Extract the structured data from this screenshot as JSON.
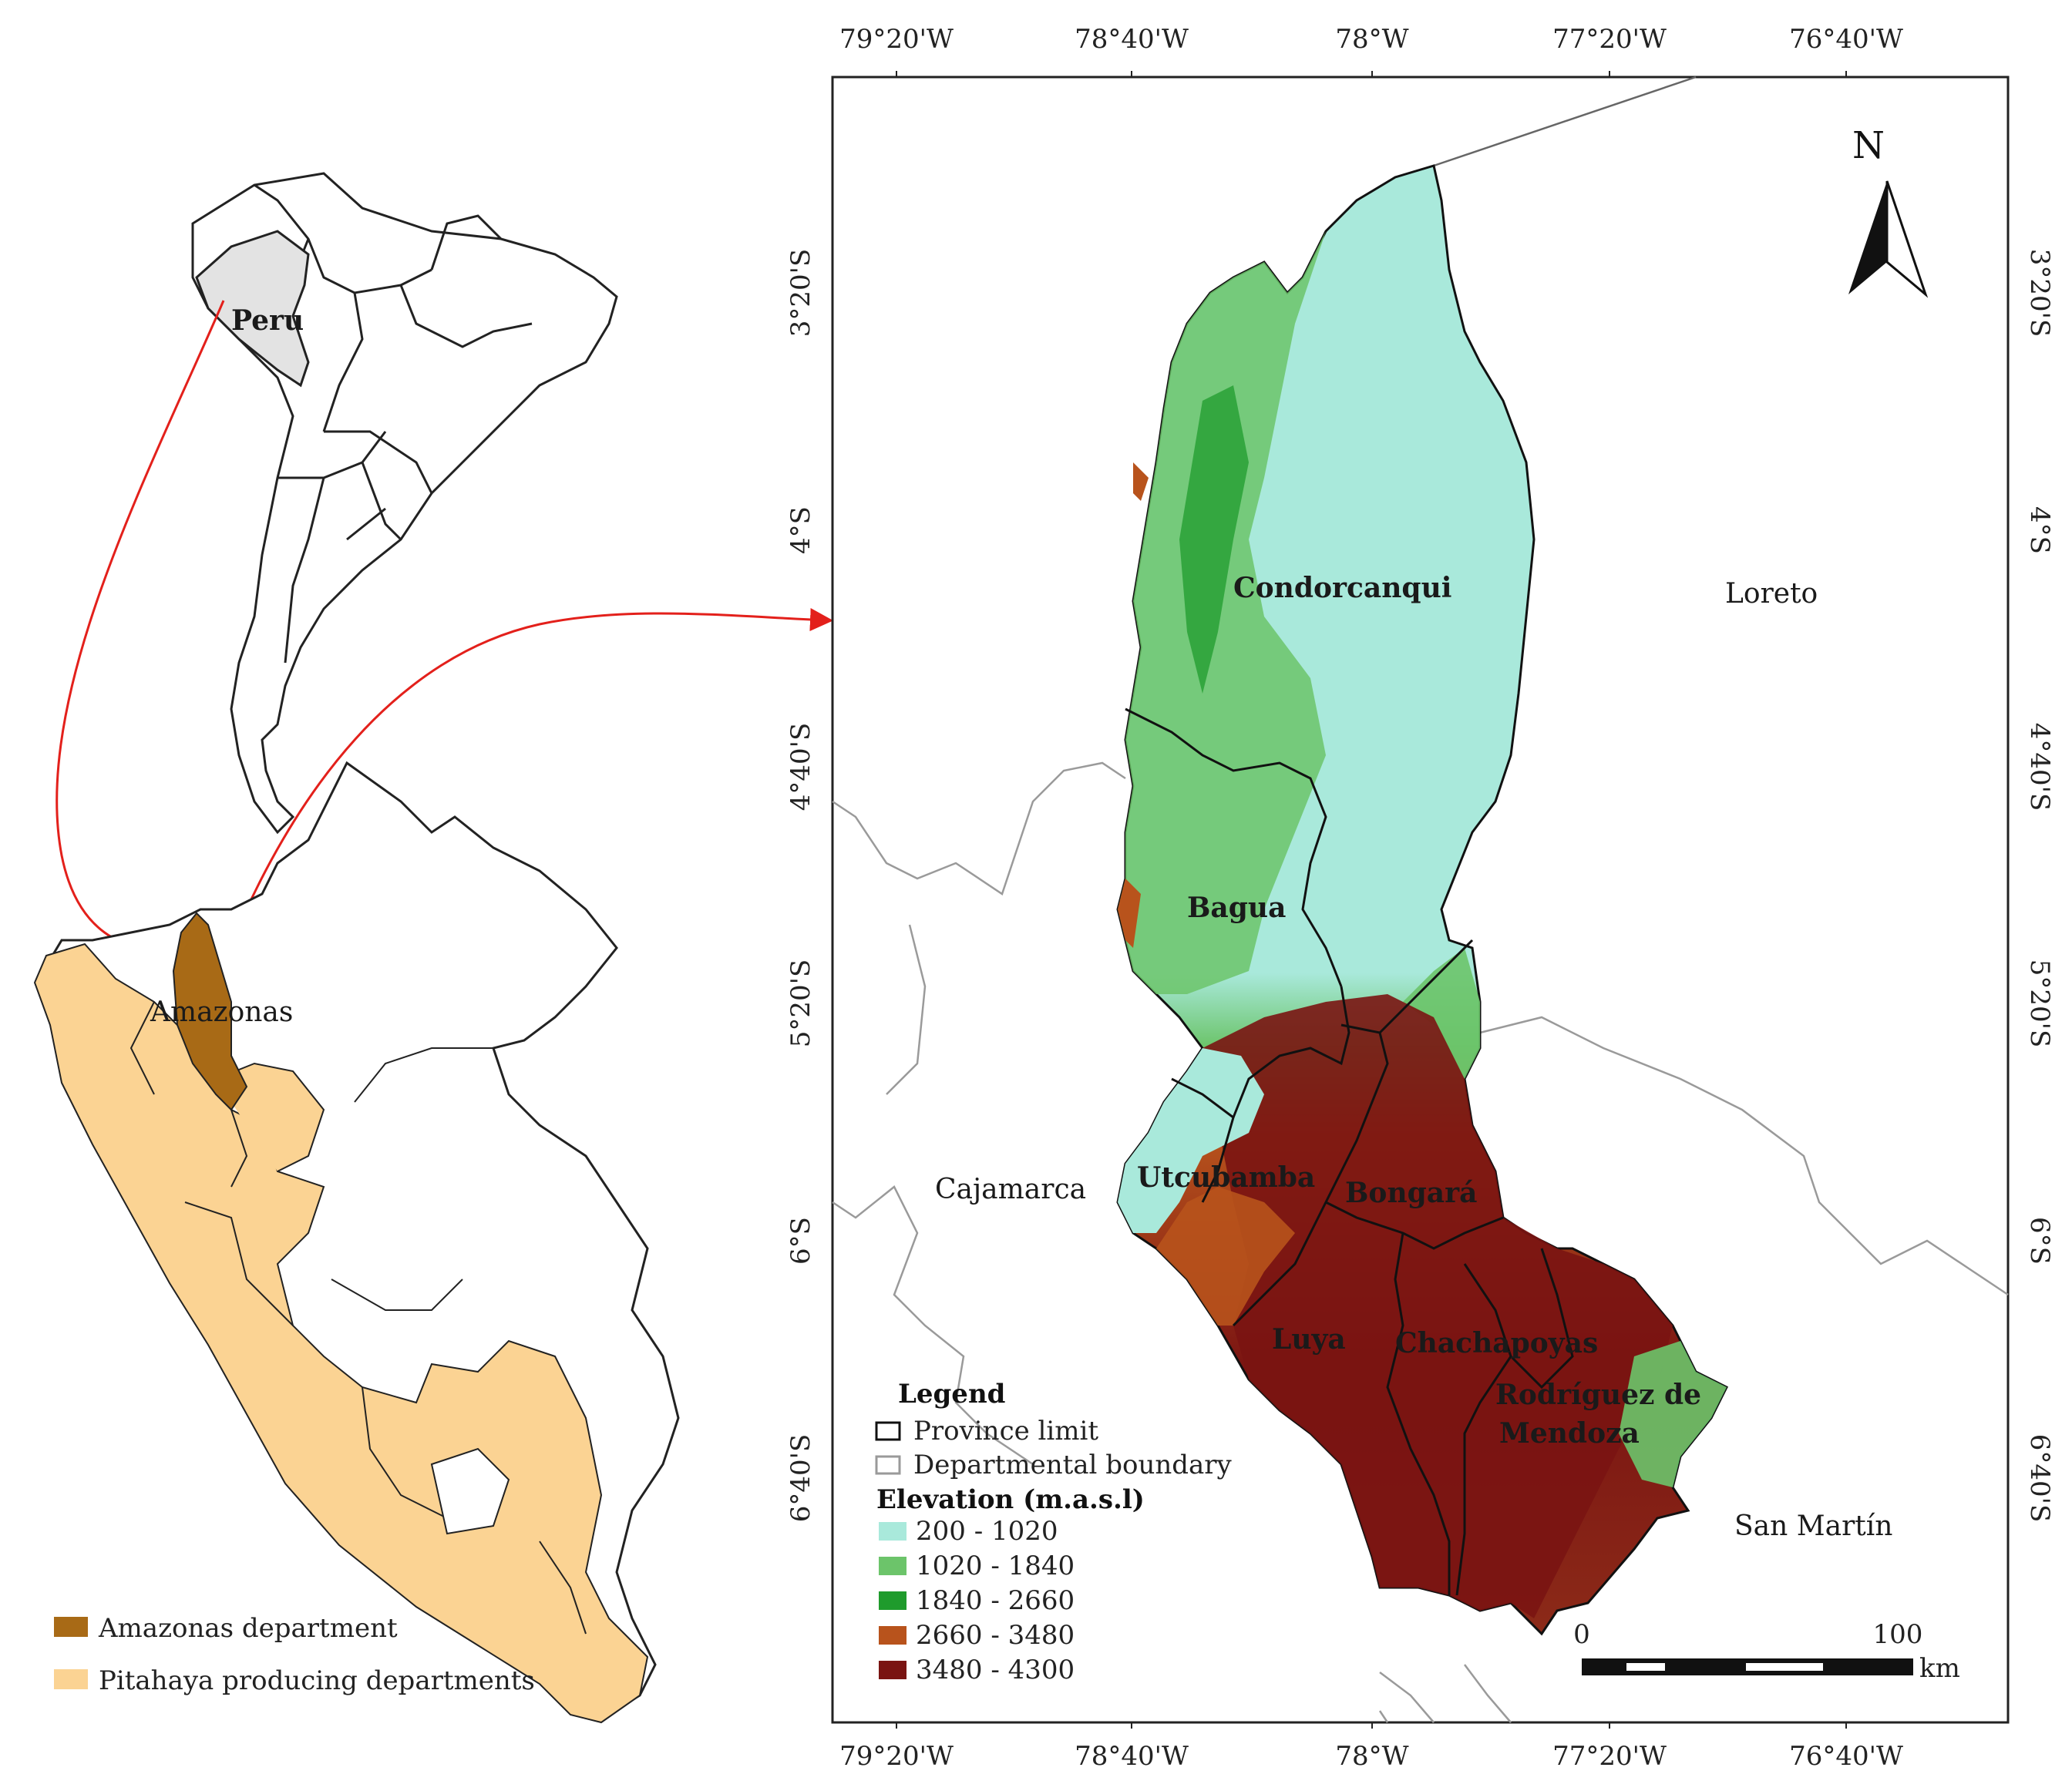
{
  "overview": {
    "peru_label": "Peru",
    "amazonas_label": "Amazonas",
    "legend": [
      {
        "label": "Amazonas department",
        "color": "#a86a16"
      },
      {
        "label": "Pitahaya producing departments",
        "color": "#fbd393"
      }
    ]
  },
  "main_map": {
    "x_ticks": [
      "79°20'W",
      "78°40'W",
      "78°W",
      "77°20'W",
      "76°40'W"
    ],
    "y_ticks": [
      "3°20'S",
      "4°S",
      "4°40'S",
      "5°20'S",
      "6°S",
      "6°40'S"
    ],
    "north_label": "N",
    "provinces": [
      "Condorcanqui",
      "Bagua",
      "Utcubamba",
      "Bongará",
      "Luya",
      "Chachapoyas",
      "Rodríguez de",
      "Mendoza"
    ],
    "neighbors": [
      "Loreto",
      "Cajamarca",
      "San Martín"
    ],
    "scalebar": {
      "start": "0",
      "end": "100",
      "unit": "km"
    },
    "legend": {
      "title": "Legend",
      "province_limit": "Province limit",
      "departmental_boundary": "Departmental boundary",
      "elevation_title": "Elevation (m.a.s.l)",
      "classes": [
        {
          "label": "200 - 1020",
          "color": "#a9e9db"
        },
        {
          "label": "1020 - 1840",
          "color": "#6cc46a"
        },
        {
          "label": "1840 - 2660",
          "color": "#1f9b2c"
        },
        {
          "label": "2660 - 3480",
          "color": "#b8531c"
        },
        {
          "label": "3480 - 4300",
          "color": "#7a1412"
        }
      ]
    }
  }
}
